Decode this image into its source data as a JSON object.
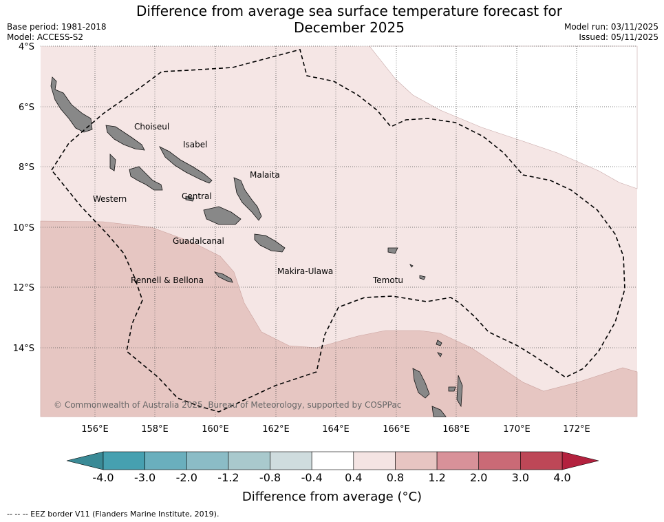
{
  "title_line1": "Difference from average sea surface temperature forecast for",
  "title_line2": "December 2025",
  "base_period": "Base period: 1981-2018",
  "model": "Model: ACCESS-S2",
  "model_run": "Model run: 03/11/2025",
  "issued": "Issued: 05/11/2025",
  "lat_labels": [
    "4°S",
    "6°S",
    "8°S",
    "10°S",
    "12°S",
    "14°S"
  ],
  "lon_labels": [
    "156°E",
    "158°E",
    "160°E",
    "162°E",
    "164°E",
    "166°E",
    "168°E",
    "170°E",
    "172°E"
  ],
  "provinces": [
    "Choiseul",
    "Isabel",
    "Malaita",
    "Western",
    "Central",
    "Guadalcanal",
    "Makira-Ulawa",
    "Temotu",
    "Rennell & Bellona"
  ],
  "copyright": "© Commonwealth of Australia 2025, Bureau of Meteorology, supported by COSPPac",
  "colorbar": {
    "ticks": [
      "-4.0",
      "-3.0",
      "-2.0",
      "-1.2",
      "-0.8",
      "-0.4",
      "0.4",
      "0.8",
      "1.2",
      "2.0",
      "3.0",
      "4.0"
    ],
    "colors": [
      "#46a0b0",
      "#6aafbd",
      "#8bbcc6",
      "#a9c9cd",
      "#cfdcde",
      "#ffffff",
      "#f4e4e3",
      "#e7c5c2",
      "#d89199",
      "#ca6a76",
      "#bd4757"
    ],
    "under_color": "#3a8a96",
    "over_color": "#b3213e",
    "label": "Difference from average (°C)"
  },
  "eez_note": "-- -- -- EEZ border V11 (Flanders Marine Institute, 2019)."
}
